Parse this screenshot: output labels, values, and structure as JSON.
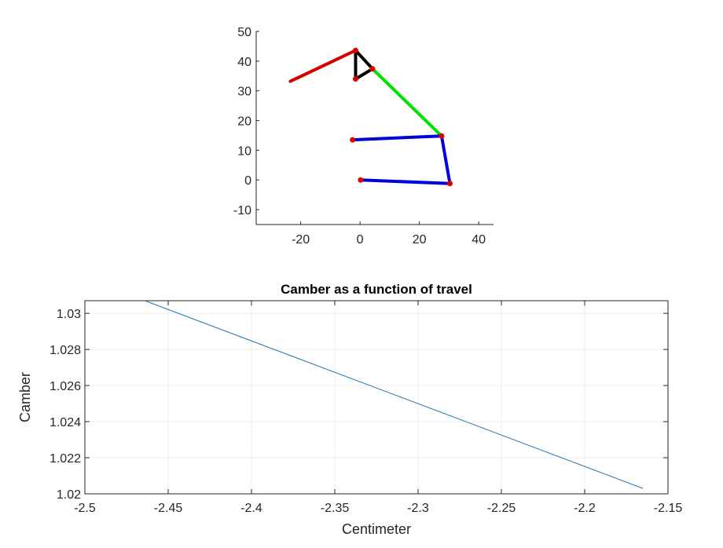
{
  "chart_data": [
    {
      "type": "line",
      "title": "",
      "xlabel": "",
      "ylabel": "",
      "xlim": [
        -35,
        45
      ],
      "ylim": [
        -15,
        50
      ],
      "xticks": [
        -20,
        0,
        20,
        40
      ],
      "yticks": [
        -10,
        0,
        10,
        20,
        30,
        40,
        50
      ],
      "grid": false,
      "series": [
        {
          "color": "#d40000",
          "points": [
            [
              -23.5,
              33.2
            ],
            [
              -1.5,
              43.6
            ]
          ]
        },
        {
          "color": "#000000",
          "points": [
            [
              -1.5,
              43.6
            ],
            [
              -1.5,
              34.0
            ],
            [
              4.2,
              37.4
            ],
            [
              -1.5,
              43.6
            ]
          ]
        },
        {
          "color": "#00e000",
          "points": [
            [
              4.2,
              37.4
            ],
            [
              27.5,
              14.8
            ]
          ]
        },
        {
          "color": "#0000d8",
          "points": [
            [
              -2.5,
              13.5
            ],
            [
              27.5,
              14.8
            ],
            [
              30.3,
              -1.2
            ],
            [
              0.2,
              0.0
            ]
          ]
        }
      ],
      "joints": [
        [
          -1.5,
          43.6
        ],
        [
          -1.5,
          34.0
        ],
        [
          4.2,
          37.4
        ],
        [
          27.5,
          14.8
        ],
        [
          -2.5,
          13.5
        ],
        [
          30.3,
          -1.2
        ],
        [
          0.2,
          0.0
        ]
      ],
      "joint_color": "#e00000"
    },
    {
      "type": "line",
      "title": "Camber as a function of travel",
      "xlabel": "Centimeter",
      "ylabel": "Camber",
      "xlim": [
        -2.5,
        -2.15
      ],
      "ylim": [
        1.02,
        1.0307
      ],
      "xticks": [
        -2.5,
        -2.45,
        -2.4,
        -2.35,
        -2.3,
        -2.25,
        -2.2,
        -2.15
      ],
      "xtick_labels": [
        "-2.5",
        "-2.45",
        "-2.4",
        "-2.35",
        "-2.3",
        "-2.25",
        "-2.2",
        "-2.15"
      ],
      "yticks": [
        1.02,
        1.022,
        1.024,
        1.026,
        1.028,
        1.03
      ],
      "ytick_labels": [
        "1.02",
        "1.022",
        "1.024",
        "1.026",
        "1.028",
        "1.03"
      ],
      "grid": true,
      "series": [
        {
          "color": "#1f77b4",
          "points": [
            [
              -2.464,
              1.0307
            ],
            [
              -2.165,
              1.0203
            ]
          ]
        }
      ]
    }
  ]
}
